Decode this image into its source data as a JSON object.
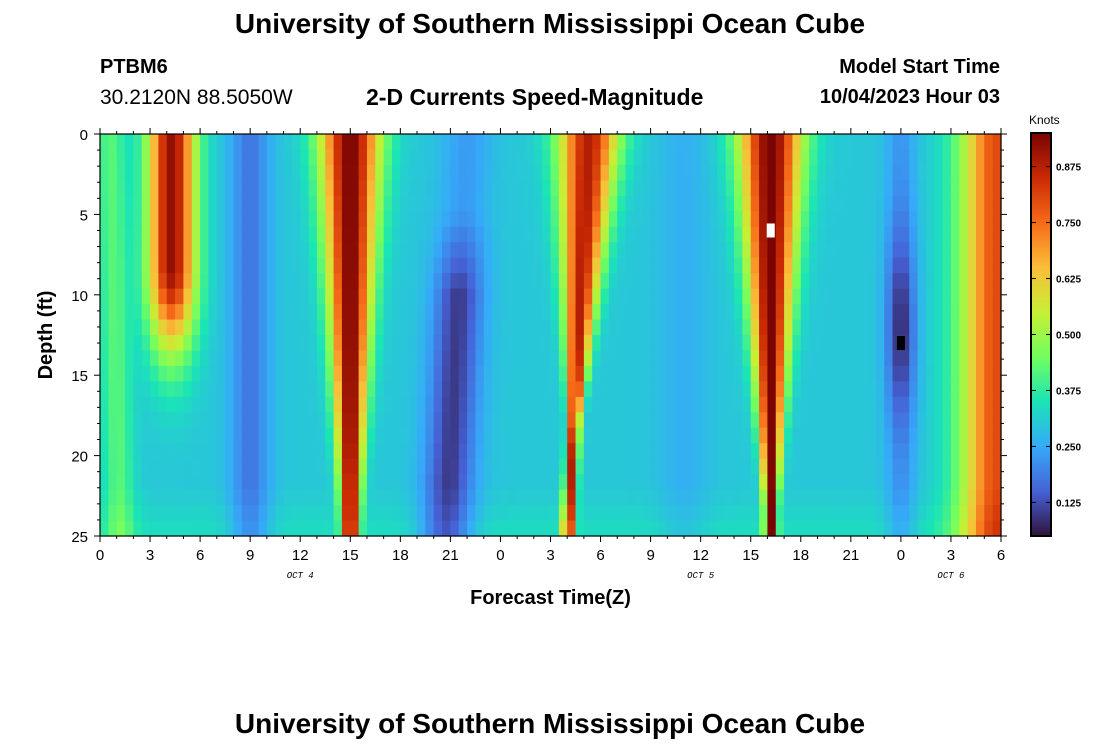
{
  "title": "University of Southern Mississippi Ocean Cube",
  "station": {
    "id": "PTBM6",
    "coords": "30.2120N  88.5050W"
  },
  "plot_title": "2-D Currents Speed-Magnitude",
  "model_start": {
    "label": "Model Start Time",
    "value": "10/04/2023 Hour 03"
  },
  "footer_title": "University of Southern Mississippi Ocean Cube",
  "chart_data": {
    "type": "heatmap",
    "title": "2-D Currents Speed-Magnitude",
    "xlabel": "Forecast Time(Z)",
    "ylabel": "Depth (ft)",
    "x_range_hours": [
      0,
      54
    ],
    "y_range": [
      0,
      25
    ],
    "y_inverted": true,
    "x_tick_labels": [
      "0",
      "3",
      "6",
      "9",
      "12",
      "15",
      "18",
      "21",
      "0",
      "3",
      "6",
      "9",
      "12",
      "15",
      "18",
      "21",
      "0",
      "3",
      "6"
    ],
    "y_tick_labels": [
      "0",
      "5",
      "10",
      "15",
      "20",
      "25"
    ],
    "day_labels": [
      {
        "text": "OCT 4",
        "hour": 12
      },
      {
        "text": "OCT 5",
        "hour": 36
      },
      {
        "text": "OCT 6",
        "hour": 51
      }
    ],
    "colorbar": {
      "title": "Knots",
      "range": [
        0.05,
        0.95
      ],
      "ticks": [
        "0.125",
        "0.250",
        "0.375",
        "0.500",
        "0.625",
        "0.750",
        "0.875"
      ],
      "tick_values": [
        0.125,
        0.25,
        0.375,
        0.5,
        0.625,
        0.75,
        0.875
      ],
      "colors": [
        "#30123b",
        "#4662d7",
        "#36aaf9",
        "#1ae4b6",
        "#72fe5e",
        "#c7ef34",
        "#fabd39",
        "#f66b19",
        "#ca2a04",
        "#7a0403"
      ]
    },
    "grid": {
      "columns": 108,
      "rows": 26
    },
    "speed_model": {
      "description": "Approximate current speed (knots) vs forecast hour and depth; high-speed lobes with V-shaped narrowing toward bottom, low-speed troughs between.",
      "baseline": 0.3,
      "bumps": [
        {
          "center_hour": 4.3,
          "width": 1.4,
          "amp": 0.62,
          "center_slope": 0.0,
          "width_shrink": 0.0,
          "depth_cutoff": 8.0
        },
        {
          "center_hour": 15.0,
          "width": 1.8,
          "amp": 0.65,
          "center_slope": 0.0,
          "width_shrink": 0.03
        },
        {
          "center_hour": 29.3,
          "width": 1.8,
          "amp": 0.58,
          "center_slope": -0.05,
          "width_shrink": 0.045
        },
        {
          "center_hour": 40.2,
          "width": 1.9,
          "amp": 0.65,
          "center_slope": 0.0,
          "width_shrink": 0.035
        },
        {
          "center_hour": 53.8,
          "width": 2.2,
          "amp": 0.5,
          "center_slope": 0.0,
          "width_shrink": 0.0
        }
      ],
      "dips": [
        {
          "center_hour": 9.0,
          "width": 1.2,
          "amp": 0.12
        },
        {
          "center_hour": 22.0,
          "width": 1.5,
          "amp": 0.2,
          "center_slope": -0.05,
          "depth_min": 8
        },
        {
          "center_hour": 48.0,
          "width": 0.9,
          "amp": 0.22,
          "depth_center": 12,
          "depth_width": 6
        },
        {
          "center_hour": 35.0,
          "width": 1.5,
          "amp": 0.04
        }
      ],
      "left_fan": {
        "hour_at_bottom": 1.2,
        "spread": 0.9,
        "amp": 0.12
      },
      "bottom_green": {
        "depth_from": 22,
        "amp": 0.08
      }
    },
    "markers": [
      {
        "hour": 40.2,
        "depth": 6.0,
        "color": "#ffffff"
      },
      {
        "hour": 48.0,
        "depth": 13.0,
        "color": "#000000"
      }
    ]
  }
}
